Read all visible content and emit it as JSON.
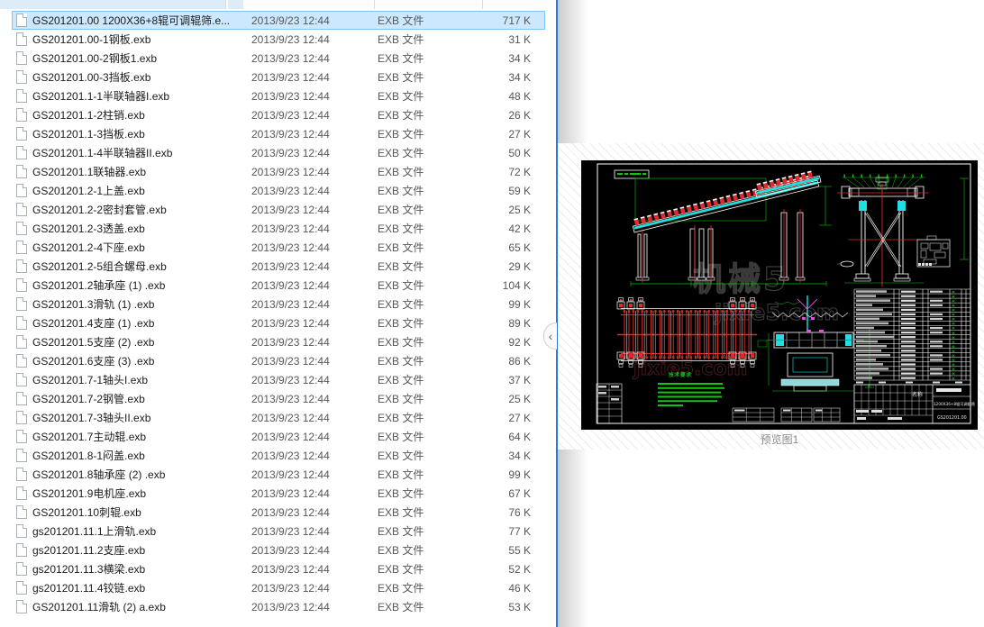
{
  "file_list": {
    "selected_index": 0,
    "rows": [
      {
        "name": "GS201201.00 1200X36+8辊可调辊筛.e...",
        "date": "2013/9/23 12:44",
        "type": "EXB 文件",
        "size": "717 K"
      },
      {
        "name": "GS201201.00-1钢板.exb",
        "date": "2013/9/23 12:44",
        "type": "EXB 文件",
        "size": "31 K"
      },
      {
        "name": "GS201201.00-2钢板1.exb",
        "date": "2013/9/23 12:44",
        "type": "EXB 文件",
        "size": "34 K"
      },
      {
        "name": "GS201201.00-3挡板.exb",
        "date": "2013/9/23 12:44",
        "type": "EXB 文件",
        "size": "34 K"
      },
      {
        "name": "GS201201.1-1半联轴器I.exb",
        "date": "2013/9/23 12:44",
        "type": "EXB 文件",
        "size": "48 K"
      },
      {
        "name": "GS201201.1-2柱销.exb",
        "date": "2013/9/23 12:44",
        "type": "EXB 文件",
        "size": "26 K"
      },
      {
        "name": "GS201201.1-3挡板.exb",
        "date": "2013/9/23 12:44",
        "type": "EXB 文件",
        "size": "27 K"
      },
      {
        "name": "GS201201.1-4半联轴器II.exb",
        "date": "2013/9/23 12:44",
        "type": "EXB 文件",
        "size": "50 K"
      },
      {
        "name": "GS201201.1联轴器.exb",
        "date": "2013/9/23 12:44",
        "type": "EXB 文件",
        "size": "72 K"
      },
      {
        "name": "GS201201.2-1上盖.exb",
        "date": "2013/9/23 12:44",
        "type": "EXB 文件",
        "size": "59 K"
      },
      {
        "name": "GS201201.2-2密封套管.exb",
        "date": "2013/9/23 12:44",
        "type": "EXB 文件",
        "size": "25 K"
      },
      {
        "name": "GS201201.2-3透盖.exb",
        "date": "2013/9/23 12:44",
        "type": "EXB 文件",
        "size": "42 K"
      },
      {
        "name": "GS201201.2-4下座.exb",
        "date": "2013/9/23 12:44",
        "type": "EXB 文件",
        "size": "65 K"
      },
      {
        "name": "GS201201.2-5组合螺母.exb",
        "date": "2013/9/23 12:44",
        "type": "EXB 文件",
        "size": "29 K"
      },
      {
        "name": "GS201201.2轴承座 (1) .exb",
        "date": "2013/9/23 12:44",
        "type": "EXB 文件",
        "size": "104 K"
      },
      {
        "name": "GS201201.3滑轨 (1) .exb",
        "date": "2013/9/23 12:44",
        "type": "EXB 文件",
        "size": "99 K"
      },
      {
        "name": "GS201201.4支座 (1) .exb",
        "date": "2013/9/23 12:44",
        "type": "EXB 文件",
        "size": "89 K"
      },
      {
        "name": "GS201201.5支座 (2) .exb",
        "date": "2013/9/23 12:44",
        "type": "EXB 文件",
        "size": "92 K"
      },
      {
        "name": "GS201201.6支座 (3) .exb",
        "date": "2013/9/23 12:44",
        "type": "EXB 文件",
        "size": "86 K"
      },
      {
        "name": "GS201201.7-1轴头I.exb",
        "date": "2013/9/23 12:44",
        "type": "EXB 文件",
        "size": "37 K"
      },
      {
        "name": "GS201201.7-2钢管.exb",
        "date": "2013/9/23 12:44",
        "type": "EXB 文件",
        "size": "25 K"
      },
      {
        "name": "GS201201.7-3轴头II.exb",
        "date": "2013/9/23 12:44",
        "type": "EXB 文件",
        "size": "27 K"
      },
      {
        "name": "GS201201.7主动辊.exb",
        "date": "2013/9/23 12:44",
        "type": "EXB 文件",
        "size": "64 K"
      },
      {
        "name": "GS201201.8-1闷盖.exb",
        "date": "2013/9/23 12:44",
        "type": "EXB 文件",
        "size": "34 K"
      },
      {
        "name": "GS201201.8轴承座 (2) .exb",
        "date": "2013/9/23 12:44",
        "type": "EXB 文件",
        "size": "99 K"
      },
      {
        "name": "GS201201.9电机座.exb",
        "date": "2013/9/23 12:44",
        "type": "EXB 文件",
        "size": "67 K"
      },
      {
        "name": "GS201201.10刺辊.exb",
        "date": "2013/9/23 12:44",
        "type": "EXB 文件",
        "size": "76 K"
      },
      {
        "name": "gs201201.11.1上滑轨.exb",
        "date": "2013/9/23 12:44",
        "type": "EXB 文件",
        "size": "77 K"
      },
      {
        "name": "gs201201.11.2支座.exb",
        "date": "2013/9/23 12:44",
        "type": "EXB 文件",
        "size": "55 K"
      },
      {
        "name": "gs201201.11.3横梁.exb",
        "date": "2013/9/23 12:44",
        "type": "EXB 文件",
        "size": "52 K"
      },
      {
        "name": "gs201201.11.4铰链.exb",
        "date": "2013/9/23 12:44",
        "type": "EXB 文件",
        "size": "46 K"
      },
      {
        "name": "GS201201.11滑轨 (2) a.exb",
        "date": "2013/9/23 12:44",
        "type": "EXB 文件",
        "size": "53 K"
      }
    ]
  },
  "preview": {
    "collapse_chevron": "‹",
    "caption": "预览图1",
    "drawing": {
      "watermark_line1": "机械5",
      "watermark_line2": "jixie5.com",
      "tech_requirements_title": "技术要求",
      "title_block_label": "名称",
      "title_block_name": "1200X36+8辊可调辊筛",
      "title_block_code": "GS201201.00"
    },
    "palette": {
      "cad_background": "#000000",
      "cad_line": "#ffffff",
      "cad_red": "#e02b2b",
      "cad_green": "#12c312",
      "cad_cyan": "#1ee0e0",
      "cad_magenta": "#e44ce4",
      "cad_gray": "#b5b5b5",
      "watermark": "#3a3a3a",
      "pane_border_blue": "#2a7cd4",
      "selection_fill": "#cce8ff",
      "selection_border": "#84c3ef",
      "header_tint": "#dcecf9"
    }
  }
}
